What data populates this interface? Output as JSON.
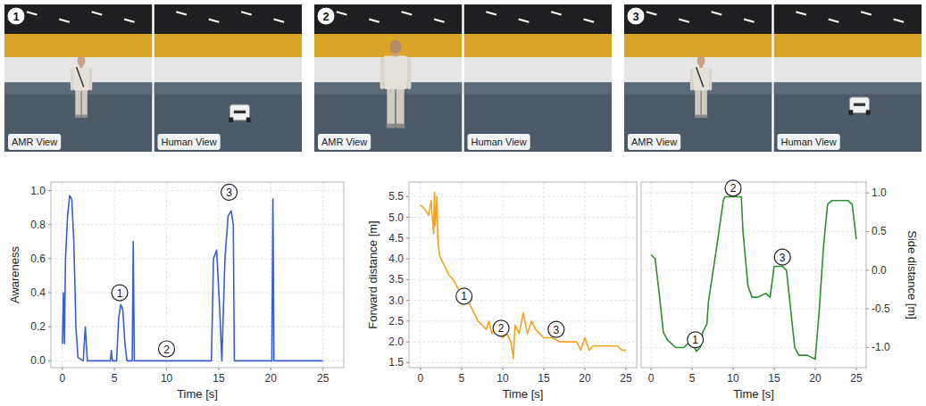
{
  "images": [
    {
      "number": "1",
      "views": [
        {
          "label": "AMR View"
        },
        {
          "label": "Human View"
        }
      ]
    },
    {
      "number": "2",
      "views": [
        {
          "label": "AMR View"
        },
        {
          "label": "Human View"
        }
      ]
    },
    {
      "number": "3",
      "views": [
        {
          "label": "AMR View"
        },
        {
          "label": "Human View"
        }
      ]
    }
  ],
  "chart_data": [
    {
      "type": "line",
      "xlabel": "Time [s]",
      "ylabel": "Awareness",
      "x": [
        0,
        0.1,
        0.2,
        0.3,
        0.5,
        0.7,
        0.9,
        1.1,
        1.3,
        1.5,
        2.0,
        2.2,
        2.4,
        3.0,
        4.6,
        4.7,
        4.8,
        5.2,
        5.4,
        5.6,
        5.8,
        6.0,
        6.2,
        6.7,
        6.8,
        6.9,
        10,
        14.3,
        14.5,
        14.8,
        15.1,
        15.3,
        15.6,
        15.9,
        16.2,
        16.4,
        16.5,
        20.1,
        20.2,
        20.3,
        25
      ],
      "series": [
        {
          "color": "#3a5fcd",
          "values": [
            0.1,
            0.4,
            0.1,
            0.6,
            0.85,
            0.97,
            0.95,
            0.7,
            0.2,
            0.02,
            0,
            0.2,
            0,
            0,
            0,
            0.06,
            0,
            0,
            0.25,
            0.33,
            0.3,
            0.1,
            0,
            0,
            0.7,
            0,
            0,
            0,
            0.6,
            0.65,
            0.3,
            0,
            0.6,
            0.85,
            0.88,
            0.8,
            0,
            0,
            0.95,
            0,
            0
          ]
        }
      ],
      "xlim": [
        -1.1,
        27
      ],
      "xticks": [
        0,
        5,
        10,
        15,
        20,
        25
      ],
      "ylim": [
        -0.04,
        1.05
      ],
      "yticks": [
        {
          "value": 0,
          "label": "0.0"
        },
        0.2,
        0.4,
        0.6,
        0.8,
        {
          "value": 1,
          "label": "1.0"
        }
      ],
      "grid": true,
      "annotations": [
        {
          "text": "1",
          "x": 5.5,
          "y": 0.4
        },
        {
          "text": "2",
          "x": 10,
          "y": 0.07
        },
        {
          "text": "3",
          "x": 16,
          "y": 0.99
        }
      ]
    },
    {
      "type": "line",
      "xlabel": "Time [s]",
      "ylabel": "Forward distance [m]",
      "x": [
        0,
        0.5,
        1,
        1.3,
        1.6,
        1.7,
        1.8,
        2,
        2.1,
        2.3,
        2.5,
        3,
        3.5,
        4,
        4.5,
        5,
        5.5,
        6,
        6.5,
        7,
        7.5,
        8,
        8.3,
        8.7,
        9,
        9.5,
        10,
        10.5,
        11,
        11.3,
        11.5,
        12,
        12.5,
        13,
        13.5,
        14,
        14.5,
        15,
        16,
        17,
        18,
        19,
        19.5,
        20,
        20.5,
        21,
        22,
        23,
        24,
        24.5,
        25
      ],
      "series": [
        {
          "color": "#f5a31a",
          "values": [
            5.3,
            5.2,
            5.05,
            5.4,
            4.6,
            5.6,
            4.8,
            5.5,
            4.5,
            4.1,
            4.0,
            3.8,
            3.6,
            3.5,
            3.3,
            3.2,
            3.0,
            2.9,
            2.7,
            2.5,
            2.4,
            2.3,
            2.5,
            2.2,
            2.3,
            2.2,
            2.1,
            2.2,
            2.0,
            1.6,
            2.4,
            2.2,
            2.7,
            2.2,
            2.5,
            2.3,
            2.2,
            2.1,
            2.1,
            2.0,
            2.0,
            2.0,
            1.8,
            2.1,
            1.8,
            1.9,
            1.9,
            1.9,
            1.9,
            1.8,
            1.8
          ]
        }
      ],
      "xlim": [
        -1.4,
        26.3
      ],
      "xticks": [
        0,
        5,
        10,
        15,
        20,
        25
      ],
      "ylim": [
        1.38,
        5.85
      ],
      "yticks": [
        1.5,
        {
          "value": 2,
          "label": "2.0"
        },
        2.5,
        {
          "value": 3,
          "label": "3.0"
        },
        3.5,
        {
          "value": 4,
          "label": "4.0"
        },
        4.5,
        {
          "value": 5,
          "label": "5.0"
        },
        5.5
      ],
      "grid": true,
      "annotations": [
        {
          "text": "1",
          "x": 5.3,
          "y": 3.1
        },
        {
          "text": "2",
          "x": 9.8,
          "y": 2.33
        },
        {
          "text": "3",
          "x": 16.5,
          "y": 2.3
        }
      ]
    },
    {
      "type": "line",
      "xlabel": "Time [s]",
      "y2label": "Side distance [m]",
      "x": [
        0,
        0.5,
        1,
        1.5,
        2,
        2.5,
        3,
        4,
        4.5,
        5,
        5.5,
        6,
        6.3,
        6.8,
        7,
        8,
        8.8,
        9,
        10,
        11,
        11.2,
        11.8,
        12.3,
        13,
        14,
        14.5,
        15,
        16,
        16.5,
        17,
        17.5,
        18,
        19,
        20,
        20.5,
        21,
        21.5,
        22,
        23,
        24,
        24.5,
        25
      ],
      "series": [
        {
          "color": "#2f8f2f",
          "axis": "y2",
          "values": [
            0.2,
            0.15,
            -0.3,
            -0.8,
            -0.9,
            -0.95,
            -1.0,
            -1.0,
            -0.95,
            -0.9,
            -1.05,
            -1.0,
            -0.8,
            -0.7,
            -0.4,
            0.3,
            0.9,
            0.95,
            0.95,
            0.95,
            0.5,
            -0.2,
            -0.35,
            -0.35,
            -0.3,
            -0.35,
            0.05,
            0.05,
            0.0,
            -0.5,
            -1.0,
            -1.1,
            -1.1,
            -1.15,
            -0.5,
            0.3,
            0.85,
            0.9,
            0.9,
            0.9,
            0.85,
            0.4
          ]
        }
      ],
      "xlim": [
        -1.2,
        26.2
      ],
      "xticks": [
        0,
        5,
        10,
        15,
        20,
        25
      ],
      "y2lim": [
        -1.26,
        1.14
      ],
      "y2ticks": [
        {
          "value": -1,
          "label": "-1.0"
        },
        -0.5,
        {
          "value": 0,
          "label": "0.0"
        },
        0.5,
        {
          "value": 1,
          "label": "1.0"
        }
      ],
      "grid": true,
      "annotations": [
        {
          "text": "1",
          "x": 5.4,
          "y": -0.9
        },
        {
          "text": "2",
          "x": 10,
          "y": 1.06
        },
        {
          "text": "3",
          "x": 16,
          "y": 0.17
        }
      ]
    }
  ]
}
